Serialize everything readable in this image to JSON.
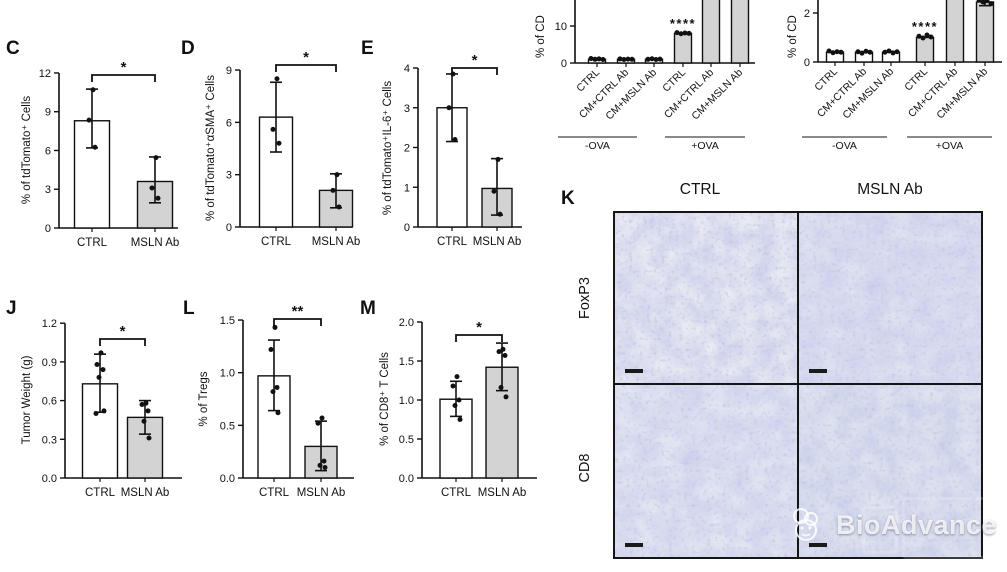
{
  "panels": [
    "C",
    "D",
    "E",
    "J",
    "L",
    "M",
    "K"
  ],
  "chart_data": [
    {
      "id": "top_left",
      "panel_label": "",
      "type": "bar",
      "note": "partial panel cut off at top of screenshot",
      "ylabel": "% of CD",
      "ytick_labels": [
        "0",
        "10"
      ],
      "categories": [
        "CTRL",
        "CM+CTRL Ab",
        "CM+MSLN Ab",
        "CTRL",
        "CM+CTRL Ab",
        "CM+MSLN Ab"
      ],
      "group_labels": [
        "-OVA",
        "+OVA"
      ],
      "values": [
        1,
        1,
        1,
        8,
        null,
        null
      ],
      "cut_off_top": [
        false,
        false,
        false,
        false,
        true,
        true
      ],
      "bar_styles": [
        "white",
        "white",
        "white",
        "gray",
        "gray",
        "gray"
      ],
      "points": [
        [
          1.2,
          1.0,
          1.1,
          0.95
        ],
        [
          1.1,
          0.95,
          1.05,
          1.0
        ],
        [
          1.0,
          1.15,
          0.95,
          1.05
        ],
        [
          8.2,
          7.9,
          8.1,
          8.0
        ],
        [],
        []
      ],
      "error_low": [
        null,
        null,
        null,
        null,
        null,
        null
      ],
      "error_high": [
        null,
        null,
        null,
        null,
        null,
        null
      ],
      "significance": {
        "label": "****",
        "bar_index": 3
      }
    },
    {
      "id": "top_right",
      "panel_label": "",
      "type": "bar",
      "note": "partial panel cut off at top of screenshot",
      "ylabel": "% of CD",
      "ytick_labels": [
        "0",
        "2"
      ],
      "categories": [
        "CTRL",
        "CM+CTRL Ab",
        "CM+MSLN Ab",
        "CTRL",
        "CM+CTRL Ab",
        "CM+MSLN Ab"
      ],
      "group_labels": [
        "-OVA",
        "+OVA"
      ],
      "values": [
        0.4,
        0.4,
        0.4,
        1.0,
        null,
        2.45
      ],
      "cut_off_top": [
        false,
        false,
        false,
        false,
        true,
        false
      ],
      "bar_styles": [
        "white",
        "white",
        "white",
        "gray",
        "gray",
        "gray"
      ],
      "points": [
        [
          0.45,
          0.38,
          0.42,
          0.4
        ],
        [
          0.42,
          0.36,
          0.44,
          0.4
        ],
        [
          0.4,
          0.45,
          0.37,
          0.42
        ],
        [
          1.05,
          0.98,
          1.1,
          1.02
        ],
        [],
        [
          2.55,
          2.45,
          2.5,
          2.38
        ]
      ],
      "error_low": [
        null,
        null,
        null,
        null,
        null,
        2.3
      ],
      "error_high": [
        null,
        null,
        null,
        null,
        null,
        2.6
      ],
      "significance": {
        "label": "****",
        "bar_index": 3
      }
    },
    {
      "id": "C",
      "panel_label": "C",
      "type": "bar",
      "ylabel": "% of tdTomato⁺ Cells",
      "ytick_labels": [
        "0",
        "3",
        "6",
        "9",
        "12"
      ],
      "categories": [
        "CTRL",
        "MSLN Ab"
      ],
      "values": [
        8.3,
        3.6
      ],
      "error_low": [
        6.2,
        1.95
      ],
      "error_high": [
        10.75,
        5.5
      ],
      "bar_styles": [
        "white",
        "gray"
      ],
      "points": [
        [
          10.7,
          8.35,
          6.25
        ],
        [
          5.45,
          3.1,
          2.3
        ]
      ],
      "significance": {
        "label": "*",
        "between": [
          0,
          1
        ]
      }
    },
    {
      "id": "D",
      "panel_label": "D",
      "type": "bar",
      "ylabel": "% of tdTomato⁺αSMA⁺ Cells",
      "ytick_labels": [
        "0",
        "3",
        "6",
        "9"
      ],
      "categories": [
        "CTRL",
        "MSLN Ab"
      ],
      "values": [
        6.3,
        2.1
      ],
      "error_low": [
        4.3,
        1.1
      ],
      "error_high": [
        8.3,
        3.05
      ],
      "bar_styles": [
        "white",
        "gray"
      ],
      "points": [
        [
          8.5,
          5.6,
          4.8
        ],
        [
          3.0,
          2.1,
          1.15
        ]
      ],
      "significance": {
        "label": "*",
        "between": [
          0,
          1
        ]
      }
    },
    {
      "id": "E",
      "panel_label": "E",
      "type": "bar",
      "ylabel": "% of tdTomato⁺IL-6⁺ Cells",
      "ytick_labels": [
        "0",
        "1",
        "2",
        "3",
        "4"
      ],
      "categories": [
        "CTRL",
        "MSLN Ab"
      ],
      "values": [
        3.0,
        0.97
      ],
      "error_low": [
        2.15,
        0.3
      ],
      "error_high": [
        3.85,
        1.72
      ],
      "bar_styles": [
        "white",
        "gray"
      ],
      "points": [
        [
          3.85,
          3.0,
          2.2
        ],
        [
          1.7,
          0.9,
          0.32
        ]
      ],
      "significance": {
        "label": "*",
        "between": [
          0,
          1
        ]
      }
    },
    {
      "id": "J",
      "panel_label": "J",
      "type": "bar",
      "ylabel": "Tumor Weight (g)",
      "ytick_labels": [
        "0.0",
        "0.3",
        "0.6",
        "0.9",
        "1.2"
      ],
      "categories": [
        "CTRL",
        "MSLN Ab"
      ],
      "values": [
        0.73,
        0.47
      ],
      "error_low": [
        0.51,
        0.34
      ],
      "error_high": [
        0.96,
        0.6
      ],
      "bar_styles": [
        "white",
        "gray"
      ],
      "points": [
        [
          0.97,
          0.88,
          0.84,
          0.78,
          0.52,
          0.5
        ],
        [
          0.58,
          0.57,
          0.52,
          0.44,
          0.31
        ]
      ],
      "significance": {
        "label": "*",
        "between": [
          0,
          1
        ]
      }
    },
    {
      "id": "L",
      "panel_label": "L",
      "type": "bar",
      "ylabel": "% of Tregs",
      "ytick_labels": [
        "0.0",
        "0.5",
        "1.0",
        "1.5"
      ],
      "categories": [
        "CTRL",
        "MSLN Ab"
      ],
      "values": [
        0.97,
        0.3
      ],
      "error_low": [
        0.64,
        0.07
      ],
      "error_high": [
        1.31,
        0.54
      ],
      "bar_styles": [
        "white",
        "gray"
      ],
      "points": [
        [
          1.43,
          1.22,
          0.86,
          0.82,
          0.62
        ],
        [
          0.57,
          0.52,
          0.16,
          0.12,
          0.1
        ]
      ],
      "significance": {
        "label": "**",
        "between": [
          0,
          1
        ]
      }
    },
    {
      "id": "M",
      "panel_label": "M",
      "type": "bar",
      "ylabel": "% of CD8⁺ T Cells",
      "ytick_labels": [
        "0.0",
        "0.5",
        "1.0",
        "1.5",
        "2.0"
      ],
      "categories": [
        "CTRL",
        "MSLN Ab"
      ],
      "values": [
        1.01,
        1.42
      ],
      "error_low": [
        0.79,
        1.12
      ],
      "error_high": [
        1.24,
        1.73
      ],
      "bar_styles": [
        "white",
        "gray"
      ],
      "points": [
        [
          1.3,
          1.18,
          1.0,
          0.93,
          0.75
        ],
        [
          1.65,
          1.62,
          1.57,
          1.16,
          1.04
        ]
      ],
      "significance": {
        "label": "*",
        "between": [
          0,
          1
        ]
      }
    }
  ],
  "panel_k": {
    "label": "K",
    "col_headers": [
      "CTRL",
      "MSLN Ab"
    ],
    "row_labels": [
      "FoxP3",
      "CD8"
    ]
  },
  "watermark": {
    "text": "BioAdvance"
  },
  "colors": {
    "bar_white": "#ffffff",
    "bar_gray": "#d3d3d3",
    "ink": "#111111",
    "histology_base": "#e3e6f2"
  }
}
